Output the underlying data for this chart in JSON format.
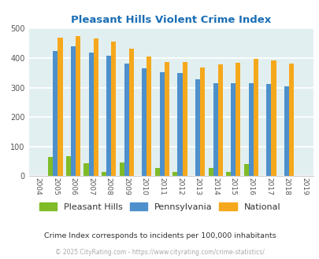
{
  "title": "Pleasant Hills Violent Crime Index",
  "years": [
    2004,
    2005,
    2006,
    2007,
    2008,
    2009,
    2010,
    2011,
    2012,
    2013,
    2014,
    2015,
    2016,
    2017,
    2018,
    2019
  ],
  "pleasant_hills": [
    0,
    65,
    68,
    43,
    15,
    45,
    0,
    27,
    15,
    0,
    27,
    15,
    40,
    0,
    0,
    0
  ],
  "pennsylvania": [
    0,
    425,
    440,
    418,
    408,
    380,
    365,
    353,
    348,
    328,
    315,
    315,
    315,
    311,
    305,
    0
  ],
  "national": [
    0,
    470,
    473,
    467,
    455,
    432,
    405,
    387,
    387,
    367,
    378,
    383,
    397,
    393,
    380,
    0
  ],
  "bar_width": 0.27,
  "ylim": [
    0,
    500
  ],
  "yticks": [
    0,
    100,
    200,
    300,
    400,
    500
  ],
  "color_ph": "#80bc28",
  "color_pa": "#4d90cc",
  "color_nat": "#f5a81c",
  "bg_color": "#e2eff0",
  "grid_color": "#ffffff",
  "title_color": "#1a6eb5",
  "subtitle": "Crime Index corresponds to incidents per 100,000 inhabitants",
  "footer": "© 2025 CityRating.com - https://www.cityrating.com/crime-statistics/",
  "legend_labels": [
    "Pleasant Hills",
    "Pennsylvania",
    "National"
  ]
}
